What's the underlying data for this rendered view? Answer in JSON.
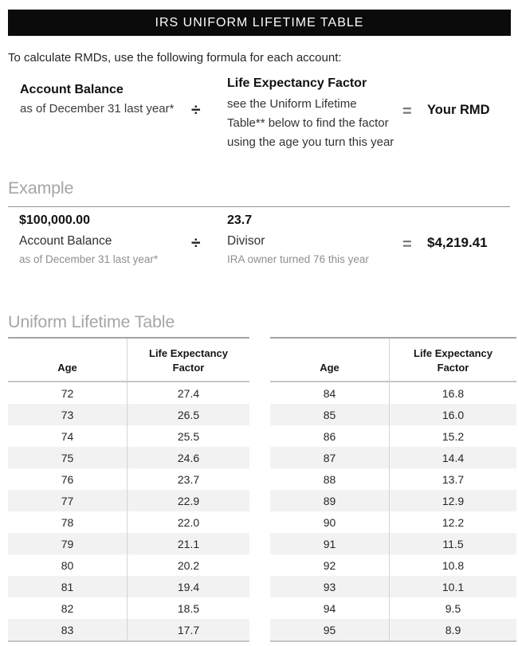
{
  "header": {
    "title": "IRS UNIFORM LIFETIME TABLE"
  },
  "intro_text": "To calculate RMDs, use the following formula for each account:",
  "formula": {
    "account_balance": {
      "title": "Account Balance",
      "subtitle": "as of December 31 last year*"
    },
    "divide_symbol": "÷",
    "life_expectancy": {
      "title": "Life Expectancy Factor",
      "line1": "see the Uniform Lifetime",
      "line2": "Table** below to find the factor",
      "line3": "using the age you turn this year"
    },
    "equals_symbol": "=",
    "result_label": "Your RMD"
  },
  "example": {
    "heading": "Example",
    "balance": {
      "value": "$100,000.00",
      "label": "Account Balance",
      "note": "as of December 31 last year*"
    },
    "divide_symbol": "÷",
    "divisor": {
      "value": "23.7",
      "label": "Divisor",
      "note": "IRA owner turned 76 this year"
    },
    "equals_symbol": "=",
    "result_value": "$4,219.41"
  },
  "table_section": {
    "heading": "Uniform Lifetime Table",
    "columns": {
      "age": "Age",
      "factor": "Life Expectancy Factor"
    },
    "left_rows": [
      [
        "72",
        "27.4"
      ],
      [
        "73",
        "26.5"
      ],
      [
        "74",
        "25.5"
      ],
      [
        "75",
        "24.6"
      ],
      [
        "76",
        "23.7"
      ],
      [
        "77",
        "22.9"
      ],
      [
        "78",
        "22.0"
      ],
      [
        "79",
        "21.1"
      ],
      [
        "80",
        "20.2"
      ],
      [
        "81",
        "19.4"
      ],
      [
        "82",
        "18.5"
      ],
      [
        "83",
        "17.7"
      ]
    ],
    "right_rows": [
      [
        "84",
        "16.8"
      ],
      [
        "85",
        "16.0"
      ],
      [
        "86",
        "15.2"
      ],
      [
        "87",
        "14.4"
      ],
      [
        "88",
        "13.7"
      ],
      [
        "89",
        "12.9"
      ],
      [
        "90",
        "12.2"
      ],
      [
        "91",
        "11.5"
      ],
      [
        "92",
        "10.8"
      ],
      [
        "93",
        "10.1"
      ],
      [
        "94",
        "9.5"
      ],
      [
        "95",
        "8.9"
      ]
    ]
  },
  "colors": {
    "header_bg": "#0b0b0b",
    "header_text": "#fdfdfd",
    "stripe": "#f2f2f2",
    "heading_gray": "#a6a6a6",
    "note_gray": "#8f8f8f",
    "border_top_gray": "#a3a3a3",
    "border_gray": "#c6c6c6",
    "divider_gray": "#d4d4d4",
    "text_dark": "#111111"
  }
}
